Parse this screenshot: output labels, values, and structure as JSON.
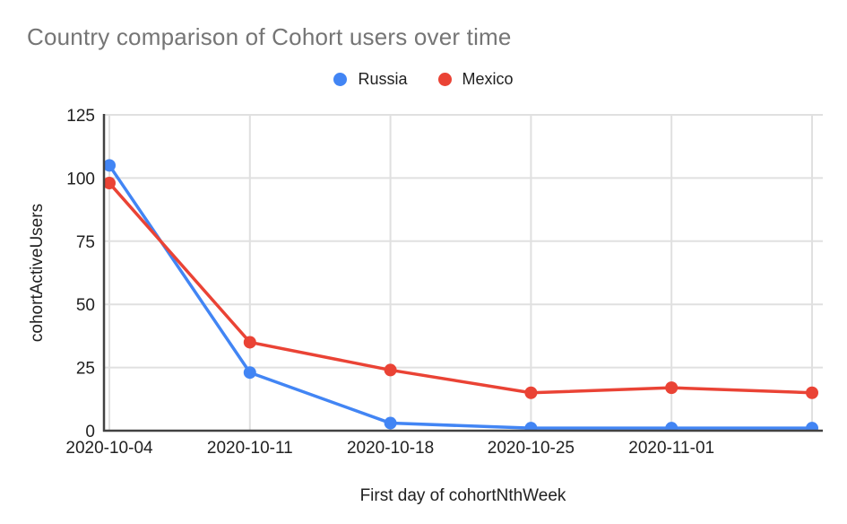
{
  "chart_data": {
    "type": "line",
    "title": "Country comparison of Cohort users over time",
    "xlabel": "First day of cohortNthWeek",
    "ylabel": "cohortActiveUsers",
    "categories": [
      "2020-10-04",
      "2020-10-11",
      "2020-10-18",
      "2020-10-25",
      "2020-11-01",
      ""
    ],
    "series": [
      {
        "name": "Russia",
        "color": "#4285F4",
        "values": [
          105,
          23,
          3,
          1,
          1,
          1
        ]
      },
      {
        "name": "Mexico",
        "color": "#EA4335",
        "values": [
          98,
          35,
          24,
          15,
          17,
          15
        ]
      }
    ],
    "ylim": [
      0,
      125
    ],
    "yticks": [
      0,
      25,
      50,
      75,
      100,
      125
    ],
    "grid": true,
    "legend_position": "top"
  },
  "colors": {
    "title_text": "#757575",
    "axis_text": "#212121",
    "axis_line": "#424242",
    "gridline": "#e0e0e0",
    "background": "#ffffff"
  }
}
